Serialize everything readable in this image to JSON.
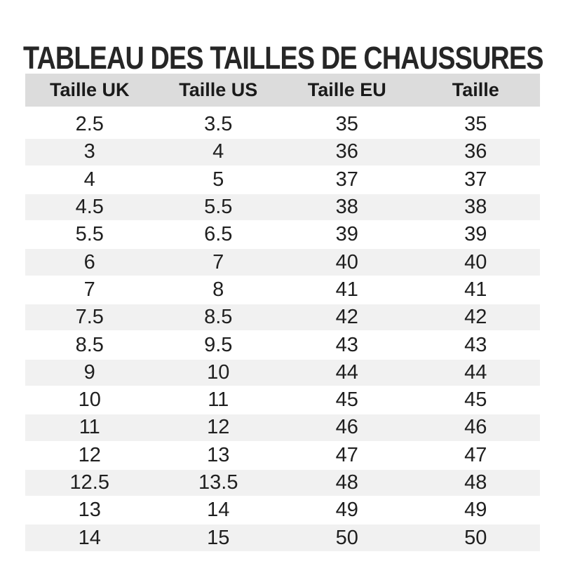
{
  "title": "TABLEAU DES TAILLES DE CHAUSSURES",
  "colors": {
    "header_bg": "#dcdcdc",
    "stripe_bg": "#f1f1f1",
    "title_text": "#262626",
    "cell_text": "#1f1f1f"
  },
  "chart_data": {
    "type": "table",
    "title": "TABLEAU DES TAILLES DE CHAUSSURES",
    "columns": [
      "Taille UK",
      "Taille US",
      "Taille EU",
      "Taille"
    ],
    "rows": [
      [
        "2.5",
        "3.5",
        "35",
        "35"
      ],
      [
        "3",
        "4",
        "36",
        "36"
      ],
      [
        "4",
        "5",
        "37",
        "37"
      ],
      [
        "4.5",
        "5.5",
        "38",
        "38"
      ],
      [
        "5.5",
        "6.5",
        "39",
        "39"
      ],
      [
        "6",
        "7",
        "40",
        "40"
      ],
      [
        "7",
        "8",
        "41",
        "41"
      ],
      [
        "7.5",
        "8.5",
        "42",
        "42"
      ],
      [
        "8.5",
        "9.5",
        "43",
        "43"
      ],
      [
        "9",
        "10",
        "44",
        "44"
      ],
      [
        "10",
        "11",
        "45",
        "45"
      ],
      [
        "11",
        "12",
        "46",
        "46"
      ],
      [
        "12",
        "13",
        "47",
        "47"
      ],
      [
        "12.5",
        "13.5",
        "48",
        "48"
      ],
      [
        "13",
        "14",
        "49",
        "49"
      ],
      [
        "14",
        "15",
        "50",
        "50"
      ]
    ],
    "layout": {
      "zebra_striping": true,
      "first_data_row_background": "white",
      "columns_equal_width": true
    }
  }
}
